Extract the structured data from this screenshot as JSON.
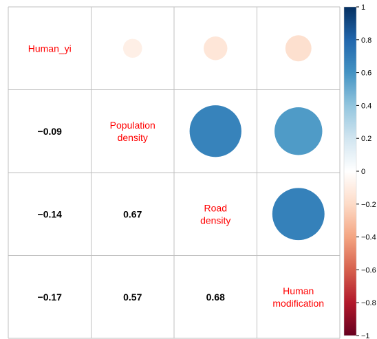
{
  "chart_data": {
    "type": "heatmap",
    "title": "",
    "variables": [
      "Human_yi",
      "Population\ndensity",
      "Road\ndensity",
      "Human\nmodification"
    ],
    "matrix": [
      [
        1.0,
        -0.09,
        -0.14,
        -0.17
      ],
      [
        -0.09,
        1.0,
        0.67,
        0.57
      ],
      [
        -0.14,
        0.67,
        1.0,
        0.68
      ],
      [
        -0.17,
        0.57,
        0.68,
        1.0
      ]
    ],
    "upper_display": "circle",
    "lower_display": "number",
    "diagonal_display": "label",
    "lower_labels": [
      {
        "row": 1,
        "col": 0,
        "text": "−0.09"
      },
      {
        "row": 2,
        "col": 0,
        "text": "−0.14"
      },
      {
        "row": 3,
        "col": 0,
        "text": "−0.17"
      },
      {
        "row": 2,
        "col": 1,
        "text": "0.67"
      },
      {
        "row": 3,
        "col": 1,
        "text": "0.57"
      },
      {
        "row": 3,
        "col": 2,
        "text": "0.68"
      }
    ],
    "colorbar": {
      "range": [
        -1,
        1
      ],
      "ticks": [
        1,
        0.8,
        0.6,
        0.4,
        0.2,
        0,
        -0.2,
        -0.4,
        -0.6,
        -0.8,
        -1
      ],
      "tick_labels": [
        "1",
        "0.8",
        "0.6",
        "0.4",
        "0.2",
        "0",
        "−0.2",
        "−0.4",
        "−0.6",
        "−0.8",
        "−1"
      ],
      "position": "right",
      "palette": [
        "#67001F",
        "#B2182B",
        "#D6604D",
        "#F4A582",
        "#FDDBC7",
        "#FFFFFF",
        "#D1E5F0",
        "#92C5DE",
        "#4393C3",
        "#2166AC",
        "#053061"
      ]
    },
    "grid": true
  }
}
